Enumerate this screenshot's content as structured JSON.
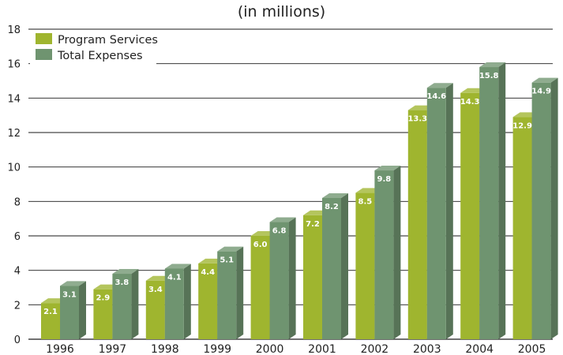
{
  "chart_data": {
    "type": "bar",
    "title": "(in millions)",
    "xlabel": "",
    "ylabel": "",
    "ylim": [
      0,
      18
    ],
    "yticks": [
      0,
      2,
      4,
      6,
      8,
      10,
      12,
      14,
      16,
      18
    ],
    "grid": true,
    "legend_position": "top-left",
    "categories": [
      "1996",
      "1997",
      "1998",
      "1999",
      "2000",
      "2001",
      "2002",
      "2003",
      "2004",
      "2005"
    ],
    "series": [
      {
        "name": "Program Services",
        "color": "#9fb52f",
        "values": [
          2.1,
          2.9,
          3.4,
          4.4,
          6.0,
          7.2,
          8.5,
          13.3,
          14.3,
          12.9
        ],
        "labels": [
          "2.1",
          "2.9",
          "3.4",
          "4.4",
          "6.0",
          "7.2",
          "8.5",
          "13.3",
          "14.3",
          "12.9"
        ]
      },
      {
        "name": "Total Expenses",
        "color": "#6f9470",
        "values": [
          3.1,
          3.8,
          4.1,
          5.1,
          6.8,
          8.2,
          9.8,
          14.6,
          15.8,
          14.9
        ],
        "labels": [
          "3.1",
          "3.8",
          "4.1",
          "5.1",
          "6.8",
          "8.2",
          "9.8",
          "14.6",
          "15.8",
          "14.9"
        ]
      }
    ]
  }
}
